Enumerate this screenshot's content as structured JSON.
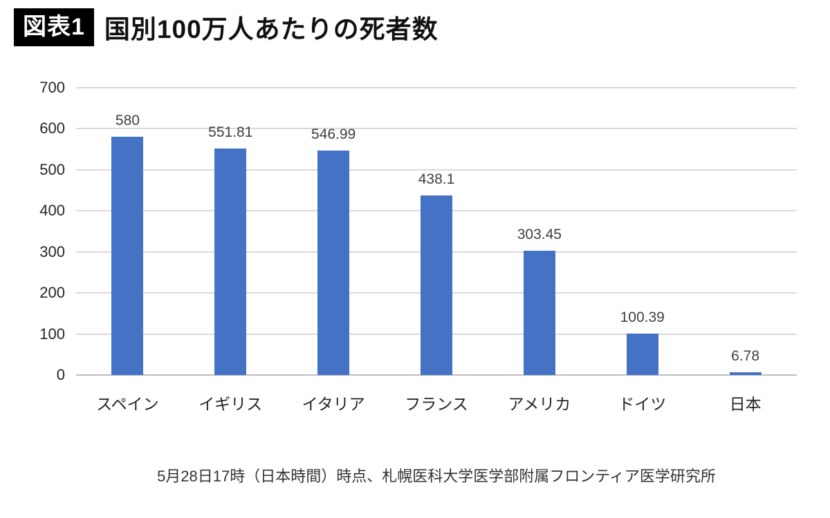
{
  "header": {
    "badge": "図表1",
    "title": "国別100万人あたりの死者数"
  },
  "chart_data": {
    "type": "bar",
    "title": "国別100万人あたりの死者数",
    "categories": [
      "スペイン",
      "イギリス",
      "イタリア",
      "フランス",
      "アメリカ",
      "ドイツ",
      "日本"
    ],
    "values": [
      580,
      551.81,
      546.99,
      438.1,
      303.45,
      100.39,
      6.78
    ],
    "value_labels": [
      "580",
      "551.81",
      "546.99",
      "438.1",
      "303.45",
      "100.39",
      "6.78"
    ],
    "xlabel": "",
    "ylabel": "",
    "ylim": [
      0,
      700
    ],
    "yticks": [
      0,
      100,
      200,
      300,
      400,
      500,
      600,
      700
    ],
    "grid": true,
    "legend": false,
    "bar_color": "#4472C4"
  },
  "footer": {
    "source": "5月28日17時（日本時間）時点、札幌医科大学医学部附属フロンティア医学研究所"
  },
  "colors": {
    "bar": "#4472C4",
    "gridline": "#D9D9D9",
    "axis_line": "#BFBFBF",
    "badge_bg": "#000000",
    "badge_text": "#FFFFFF",
    "data_label": "#404040",
    "tick_label": "#262626"
  }
}
